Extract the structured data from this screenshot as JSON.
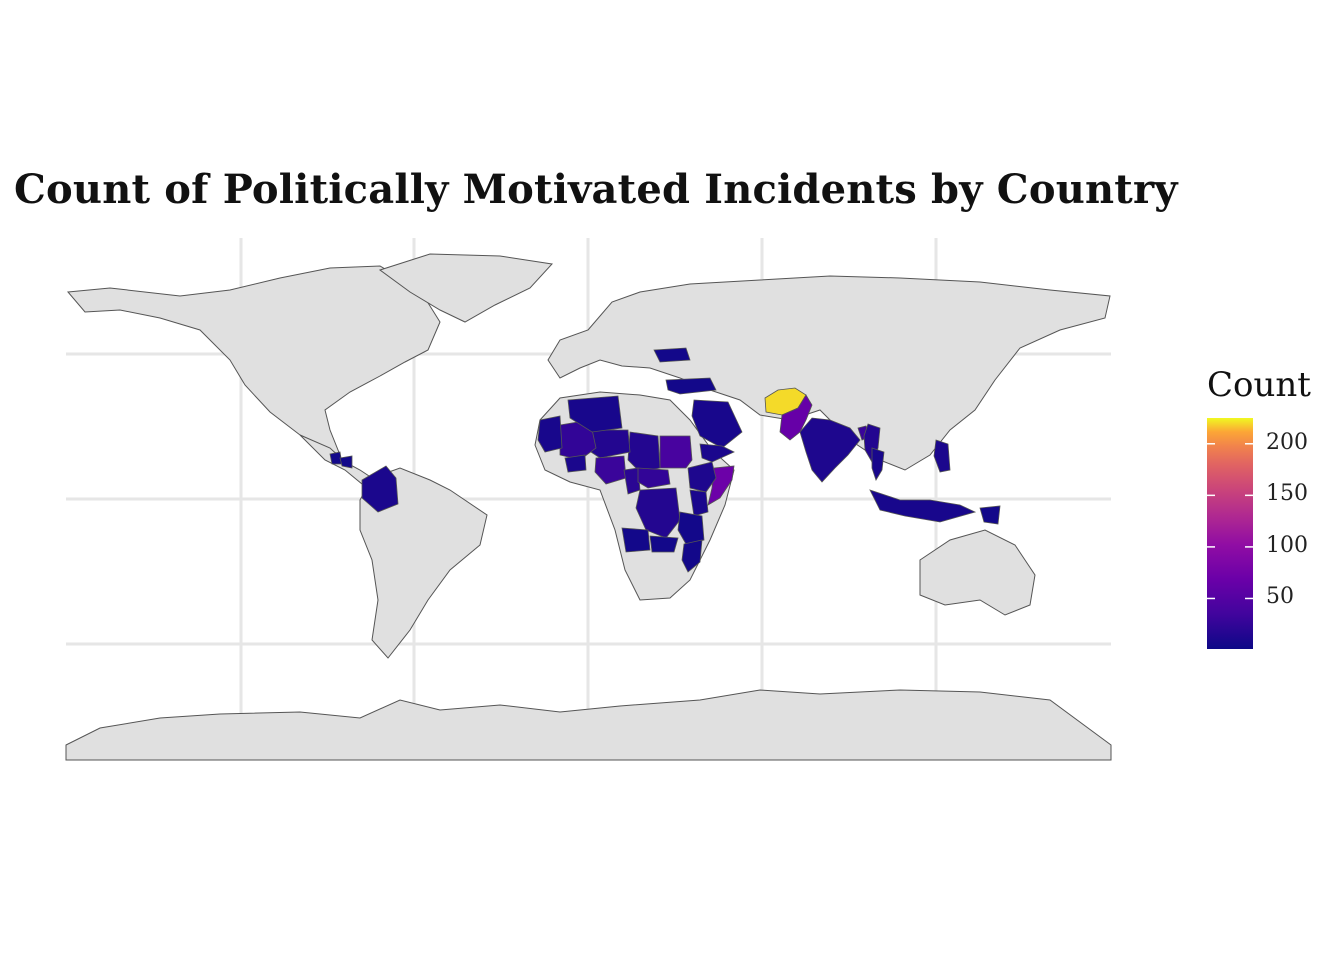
{
  "title": "Count of Politically Motivated Incidents by Country",
  "chart_data": {
    "type": "choropleth",
    "title": "Count of Politically Motivated Incidents by Country",
    "color_scale": "plasma",
    "scale_min": 1,
    "scale_max": 225,
    "legend": {
      "title": "Count",
      "ticks": [
        50,
        100,
        150,
        200
      ],
      "tick_labels": [
        "50",
        "100",
        "150",
        "200"
      ],
      "placement": "right"
    },
    "no_data_color": "#e0e0e0",
    "grid": true,
    "regions": [
      {
        "name": "Afghanistan",
        "value": 220
      },
      {
        "name": "Pakistan",
        "value": 65
      },
      {
        "name": "Somalia",
        "value": 70
      },
      {
        "name": "Sudan",
        "value": 40
      },
      {
        "name": "Nigeria",
        "value": 30
      },
      {
        "name": "Mali",
        "value": 25
      },
      {
        "name": "Niger",
        "value": 15
      },
      {
        "name": "Chad",
        "value": 15
      },
      {
        "name": "Cameroon",
        "value": 20
      },
      {
        "name": "Central African Republic",
        "value": 25
      },
      {
        "name": "Algeria",
        "value": 8
      },
      {
        "name": "Mauritania",
        "value": 8
      },
      {
        "name": "Burkina Faso",
        "value": 10
      },
      {
        "name": "Ethiopia",
        "value": 12
      },
      {
        "name": "Kenya",
        "value": 10
      },
      {
        "name": "DR Congo",
        "value": 15
      },
      {
        "name": "Angola",
        "value": 5
      },
      {
        "name": "Zambia",
        "value": 5
      },
      {
        "name": "Mozambique",
        "value": 5
      },
      {
        "name": "Tanzania",
        "value": 5
      },
      {
        "name": "Saudi Arabia",
        "value": 8
      },
      {
        "name": "Yemen",
        "value": 10
      },
      {
        "name": "Turkey",
        "value": 5
      },
      {
        "name": "Ukraine",
        "value": 5
      },
      {
        "name": "India",
        "value": 12
      },
      {
        "name": "Myanmar",
        "value": 15
      },
      {
        "name": "Bangladesh",
        "value": 30
      },
      {
        "name": "Thailand",
        "value": 8
      },
      {
        "name": "Philippines",
        "value": 10
      },
      {
        "name": "Indonesia",
        "value": 8
      },
      {
        "name": "Papua New Guinea",
        "value": 5
      },
      {
        "name": "Colombia",
        "value": 10
      },
      {
        "name": "Guatemala",
        "value": 5
      },
      {
        "name": "Honduras",
        "value": 5
      }
    ]
  }
}
